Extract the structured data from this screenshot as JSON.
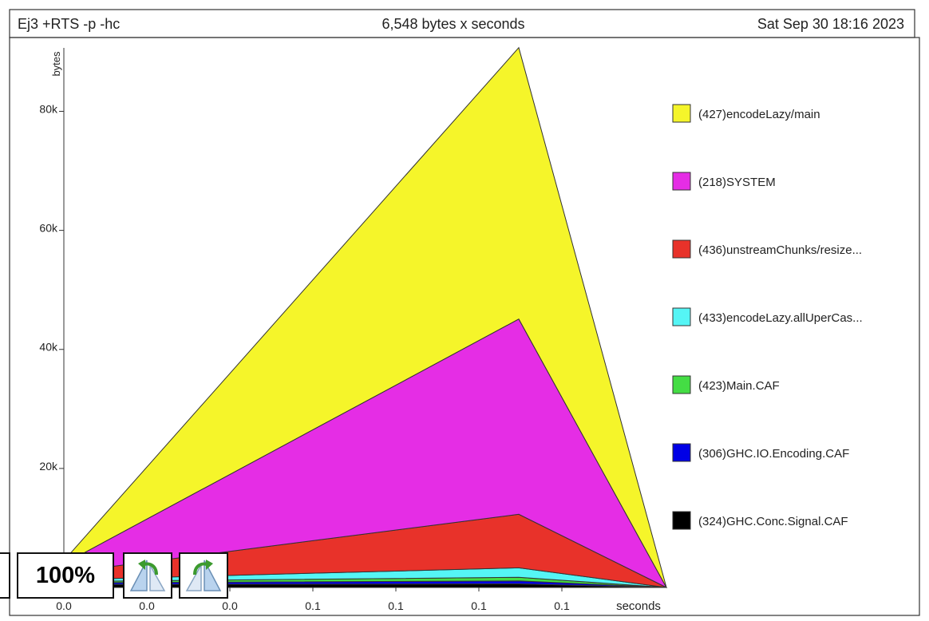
{
  "header": {
    "program": "Ej3 +RTS -p -hc",
    "total": "6,548 bytes x seconds",
    "date": "Sat Sep 30 18:16 2023"
  },
  "controls": {
    "zoom_level": "100%",
    "rotate_left_icon": "rotate-left-icon",
    "rotate_right_icon": "rotate-right-icon"
  },
  "chart_data": {
    "type": "area",
    "stacked": true,
    "title": "",
    "xlabel": "seconds",
    "ylabel": "bytes",
    "ylim": [
      0,
      92000
    ],
    "yticks": [
      20000,
      40000,
      60000,
      80000
    ],
    "ytick_labels": [
      "20k",
      "40k",
      "60k",
      "80k"
    ],
    "xtick_labels": [
      "0.0",
      "0.0",
      "0.0",
      "0.1",
      "0.1",
      "0.1",
      "0.1"
    ],
    "x": [
      0.0,
      0.1,
      0.1
    ],
    "legend_position": "right",
    "series": [
      {
        "name": "(324)GHC.Conc.Signal.CAF",
        "color": "#000000",
        "values": [
          500,
          600,
          0
        ]
      },
      {
        "name": "(306)GHC.IO.Encoding.CAF",
        "color": "#0000e6",
        "values": [
          300,
          500,
          0
        ]
      },
      {
        "name": "(423)Main.CAF",
        "color": "#44dd44",
        "values": [
          200,
          600,
          0
        ]
      },
      {
        "name": "(433)encodeLazy.allUperCas...",
        "color": "#55f5f5",
        "values": [
          300,
          1600,
          0
        ]
      },
      {
        "name": "(436)unstreamChunks/resize...",
        "color": "#e8322a",
        "values": [
          1200,
          9000,
          0
        ]
      },
      {
        "name": "(218)SYSTEM",
        "color": "#e52de5",
        "values": [
          1500,
          32800,
          0
        ]
      },
      {
        "name": "(427)encodeLazy/main",
        "color": "#f5f52a",
        "values": [
          500,
          45600,
          0
        ]
      }
    ]
  }
}
